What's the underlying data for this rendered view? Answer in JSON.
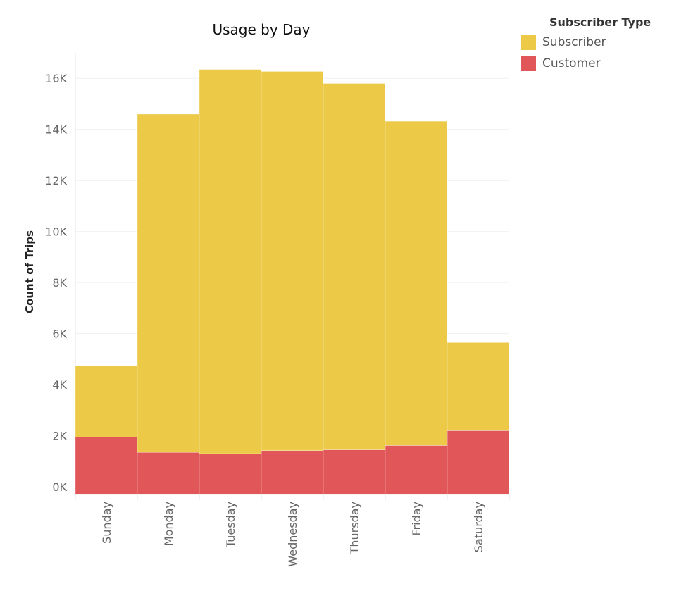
{
  "chart_data": {
    "type": "bar",
    "stacked": true,
    "title": "Usage by Day",
    "xlabel": "",
    "ylabel": "Count of Trips",
    "categories": [
      "Sunday",
      "Monday",
      "Tuesday",
      "Wednesday",
      "Thursday",
      "Friday",
      "Saturday"
    ],
    "series": [
      {
        "name": "Customer",
        "color": "#E15759",
        "values": [
          1950,
          1350,
          1300,
          1420,
          1450,
          1620,
          2200
        ]
      },
      {
        "name": "Subscriber",
        "color": "#EDC948",
        "values": [
          2800,
          13250,
          15050,
          14850,
          14350,
          12700,
          3450
        ]
      }
    ],
    "ylim": [
      -300,
      17000
    ],
    "yticks": [
      0,
      2000,
      4000,
      6000,
      8000,
      10000,
      12000,
      14000,
      16000
    ],
    "ytick_labels": [
      "0K",
      "2K",
      "4K",
      "6K",
      "8K",
      "10K",
      "12K",
      "14K",
      "16K"
    ],
    "grid": true,
    "legend_position": "top-right"
  },
  "legend": {
    "title": "Subscriber Type",
    "items": [
      {
        "label": "Subscriber",
        "color": "#EDC948"
      },
      {
        "label": "Customer",
        "color": "#E15759"
      }
    ]
  }
}
